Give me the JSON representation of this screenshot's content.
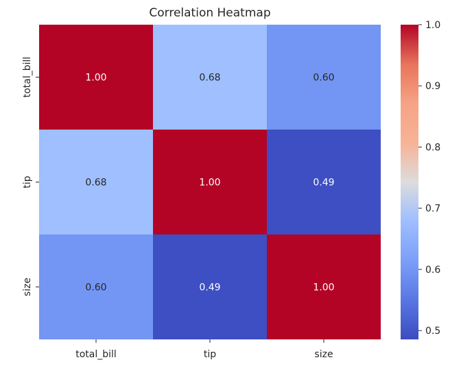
{
  "chart_data": {
    "type": "heatmap",
    "title": "Correlation Heatmap",
    "rows": [
      "total_bill",
      "tip",
      "size"
    ],
    "columns": [
      "total_bill",
      "tip",
      "size"
    ],
    "values": [
      [
        1.0,
        0.68,
        0.6
      ],
      [
        0.68,
        1.0,
        0.49
      ],
      [
        0.6,
        0.49,
        1.0
      ]
    ],
    "cell_labels": [
      [
        "1.00",
        "0.68",
        "0.60"
      ],
      [
        "0.68",
        "1.00",
        "0.49"
      ],
      [
        "0.60",
        "0.49",
        "1.00"
      ]
    ],
    "colormap": "coolwarm",
    "vmin": 0.4856,
    "vmax": 1.0,
    "colorbar": {
      "ticks": [
        0.5,
        0.6,
        0.7,
        0.8,
        0.9,
        1.0
      ],
      "tick_labels": [
        "0.5",
        "0.6",
        "0.7",
        "0.8",
        "0.9",
        "1.0"
      ],
      "placement": "right"
    },
    "annotation_colors": {
      "dark": "#262626",
      "light": "#ffffff"
    }
  }
}
